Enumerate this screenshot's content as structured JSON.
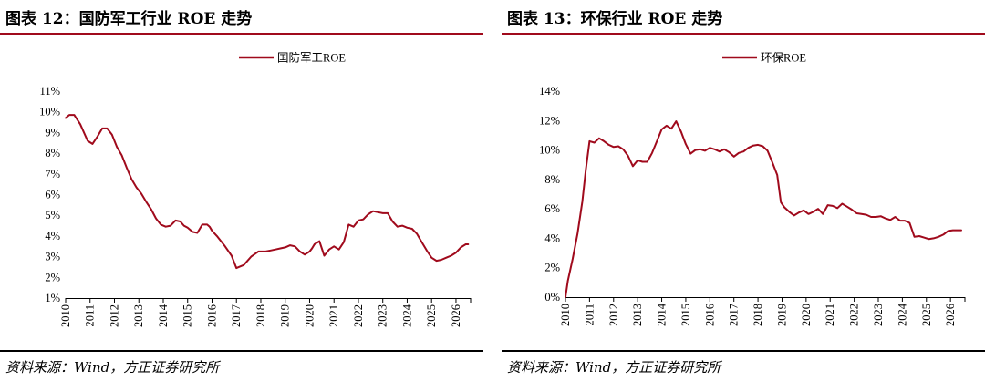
{
  "colors": {
    "series": "#a00a1c",
    "title_rule": "#a00a1c",
    "axis": "#000000"
  },
  "figures": [
    {
      "title": "图表 12：国防军工行业 ROE 走势",
      "source": "资料来源：Wind，方正证券研究所"
    },
    {
      "title": "图表 13：环保行业 ROE 走势",
      "source": "资料来源：Wind，方正证券研究所"
    }
  ],
  "chart_data": [
    {
      "type": "line",
      "title": "",
      "xlabel": "",
      "ylabel": "",
      "legend_position": "top-center",
      "grid": false,
      "ylim": [
        0.01,
        0.11
      ],
      "yticks": [
        "1%",
        "2%",
        "3%",
        "4%",
        "5%",
        "6%",
        "7%",
        "8%",
        "9%",
        "10%",
        "11%"
      ],
      "xticks": [
        "2010",
        "2011",
        "2012",
        "2013",
        "2014",
        "2015",
        "2016",
        "2017",
        "2018",
        "2019",
        "2020",
        "2021",
        "2022",
        "2023",
        "2024",
        "2025",
        "2026"
      ],
      "xlim": [
        2010,
        2026.6
      ],
      "series": [
        {
          "name": "国防军工ROE",
          "x": [
            2010.0,
            2010.15,
            2010.35,
            2010.6,
            2010.9,
            2011.1,
            2011.3,
            2011.5,
            2011.7,
            2011.9,
            2012.1,
            2012.3,
            2012.5,
            2012.7,
            2012.9,
            2013.1,
            2013.3,
            2013.5,
            2013.7,
            2013.9,
            2014.1,
            2014.3,
            2014.5,
            2014.7,
            2014.85,
            2015.0,
            2015.2,
            2015.4,
            2015.6,
            2015.8,
            2015.9,
            2016.0,
            2016.2,
            2016.5,
            2016.8,
            2017.0,
            2017.3,
            2017.6,
            2017.9,
            2018.2,
            2018.4,
            2018.6,
            2018.8,
            2019.0,
            2019.2,
            2019.4,
            2019.6,
            2019.8,
            2020.0,
            2020.1,
            2020.2,
            2020.4,
            2020.6,
            2020.8,
            2021.0,
            2021.2,
            2021.4,
            2021.6,
            2021.8,
            2022.0,
            2022.2,
            2022.4,
            2022.6,
            2022.8,
            2023.0,
            2023.2,
            2023.4,
            2023.6,
            2023.8,
            2024.0,
            2024.2,
            2024.4,
            2024.6,
            2024.8,
            2025.0,
            2025.2,
            2025.4,
            2025.6,
            2025.8,
            2026.0,
            2026.2,
            2026.4,
            2026.5
          ],
          "values": [
            0.097,
            0.0985,
            0.0985,
            0.094,
            0.086,
            0.0845,
            0.088,
            0.092,
            0.092,
            0.089,
            0.083,
            0.079,
            0.073,
            0.0675,
            0.0635,
            0.0605,
            0.0565,
            0.053,
            0.0485,
            0.0455,
            0.0445,
            0.045,
            0.0475,
            0.047,
            0.045,
            0.044,
            0.042,
            0.0415,
            0.0455,
            0.0455,
            0.0445,
            0.0425,
            0.04,
            0.0355,
            0.0305,
            0.0245,
            0.026,
            0.03,
            0.0325,
            0.0325,
            0.033,
            0.0335,
            0.034,
            0.0345,
            0.0355,
            0.035,
            0.0325,
            0.031,
            0.0325,
            0.034,
            0.036,
            0.0375,
            0.0305,
            0.0335,
            0.035,
            0.0335,
            0.037,
            0.0455,
            0.0445,
            0.0475,
            0.048,
            0.0505,
            0.052,
            0.0515,
            0.051,
            0.051,
            0.047,
            0.0445,
            0.045,
            0.044,
            0.0435,
            0.041,
            0.037,
            0.033,
            0.0295,
            0.028,
            0.0285,
            0.0295,
            0.0305,
            0.032,
            0.0345,
            0.036,
            0.036
          ]
        }
      ]
    },
    {
      "type": "line",
      "title": "",
      "xlabel": "",
      "ylabel": "",
      "legend_position": "top-center",
      "grid": false,
      "ylim": [
        0,
        0.14
      ],
      "yticks": [
        "0%",
        "2%",
        "4%",
        "6%",
        "8%",
        "10%",
        "12%",
        "14%"
      ],
      "xticks": [
        "2010",
        "2011",
        "2012",
        "2013",
        "2014",
        "2015",
        "2016",
        "2017",
        "2018",
        "2019",
        "2020",
        "2021",
        "2022",
        "2023",
        "2024",
        "2025",
        "2026"
      ],
      "xlim": [
        2010,
        2026.6
      ],
      "series": [
        {
          "name": "环保ROE",
          "x": [
            2010.0,
            2010.1,
            2010.3,
            2010.5,
            2010.7,
            2010.85,
            2011.0,
            2011.2,
            2011.4,
            2011.6,
            2011.8,
            2012.0,
            2012.2,
            2012.4,
            2012.6,
            2012.8,
            2013.0,
            2013.2,
            2013.4,
            2013.6,
            2013.8,
            2014.0,
            2014.2,
            2014.4,
            2014.6,
            2014.8,
            2015.0,
            2015.2,
            2015.4,
            2015.6,
            2015.8,
            2016.0,
            2016.2,
            2016.4,
            2016.6,
            2016.8,
            2017.0,
            2017.2,
            2017.4,
            2017.6,
            2017.8,
            2018.0,
            2018.2,
            2018.4,
            2018.6,
            2018.8,
            2018.95,
            2019.1,
            2019.3,
            2019.5,
            2019.7,
            2019.9,
            2020.1,
            2020.3,
            2020.5,
            2020.7,
            2020.9,
            2021.1,
            2021.3,
            2021.5,
            2021.7,
            2021.9,
            2022.1,
            2022.3,
            2022.5,
            2022.7,
            2022.9,
            2023.1,
            2023.3,
            2023.5,
            2023.7,
            2023.9,
            2024.1,
            2024.3,
            2024.5,
            2024.7,
            2024.9,
            2025.1,
            2025.3,
            2025.5,
            2025.7,
            2025.9,
            2026.1,
            2026.3,
            2026.45
          ],
          "values": [
            0.0,
            0.011,
            0.026,
            0.043,
            0.065,
            0.087,
            0.106,
            0.105,
            0.108,
            0.106,
            0.1035,
            0.102,
            0.1025,
            0.1005,
            0.096,
            0.089,
            0.093,
            0.092,
            0.092,
            0.098,
            0.106,
            0.114,
            0.1165,
            0.1145,
            0.1195,
            0.1125,
            0.104,
            0.0975,
            0.1,
            0.1005,
            0.0995,
            0.1015,
            0.1005,
            0.099,
            0.1005,
            0.0985,
            0.0955,
            0.098,
            0.099,
            0.1015,
            0.103,
            0.1035,
            0.1025,
            0.0995,
            0.0915,
            0.083,
            0.0645,
            0.061,
            0.058,
            0.0555,
            0.0575,
            0.059,
            0.0565,
            0.058,
            0.06,
            0.0565,
            0.0625,
            0.062,
            0.0605,
            0.0635,
            0.0615,
            0.0595,
            0.057,
            0.0565,
            0.056,
            0.0545,
            0.0545,
            0.055,
            0.0535,
            0.0525,
            0.0545,
            0.052,
            0.052,
            0.0505,
            0.041,
            0.0415,
            0.0405,
            0.0395,
            0.04,
            0.041,
            0.0425,
            0.045,
            0.0455,
            0.0455,
            0.0455
          ]
        }
      ]
    }
  ]
}
